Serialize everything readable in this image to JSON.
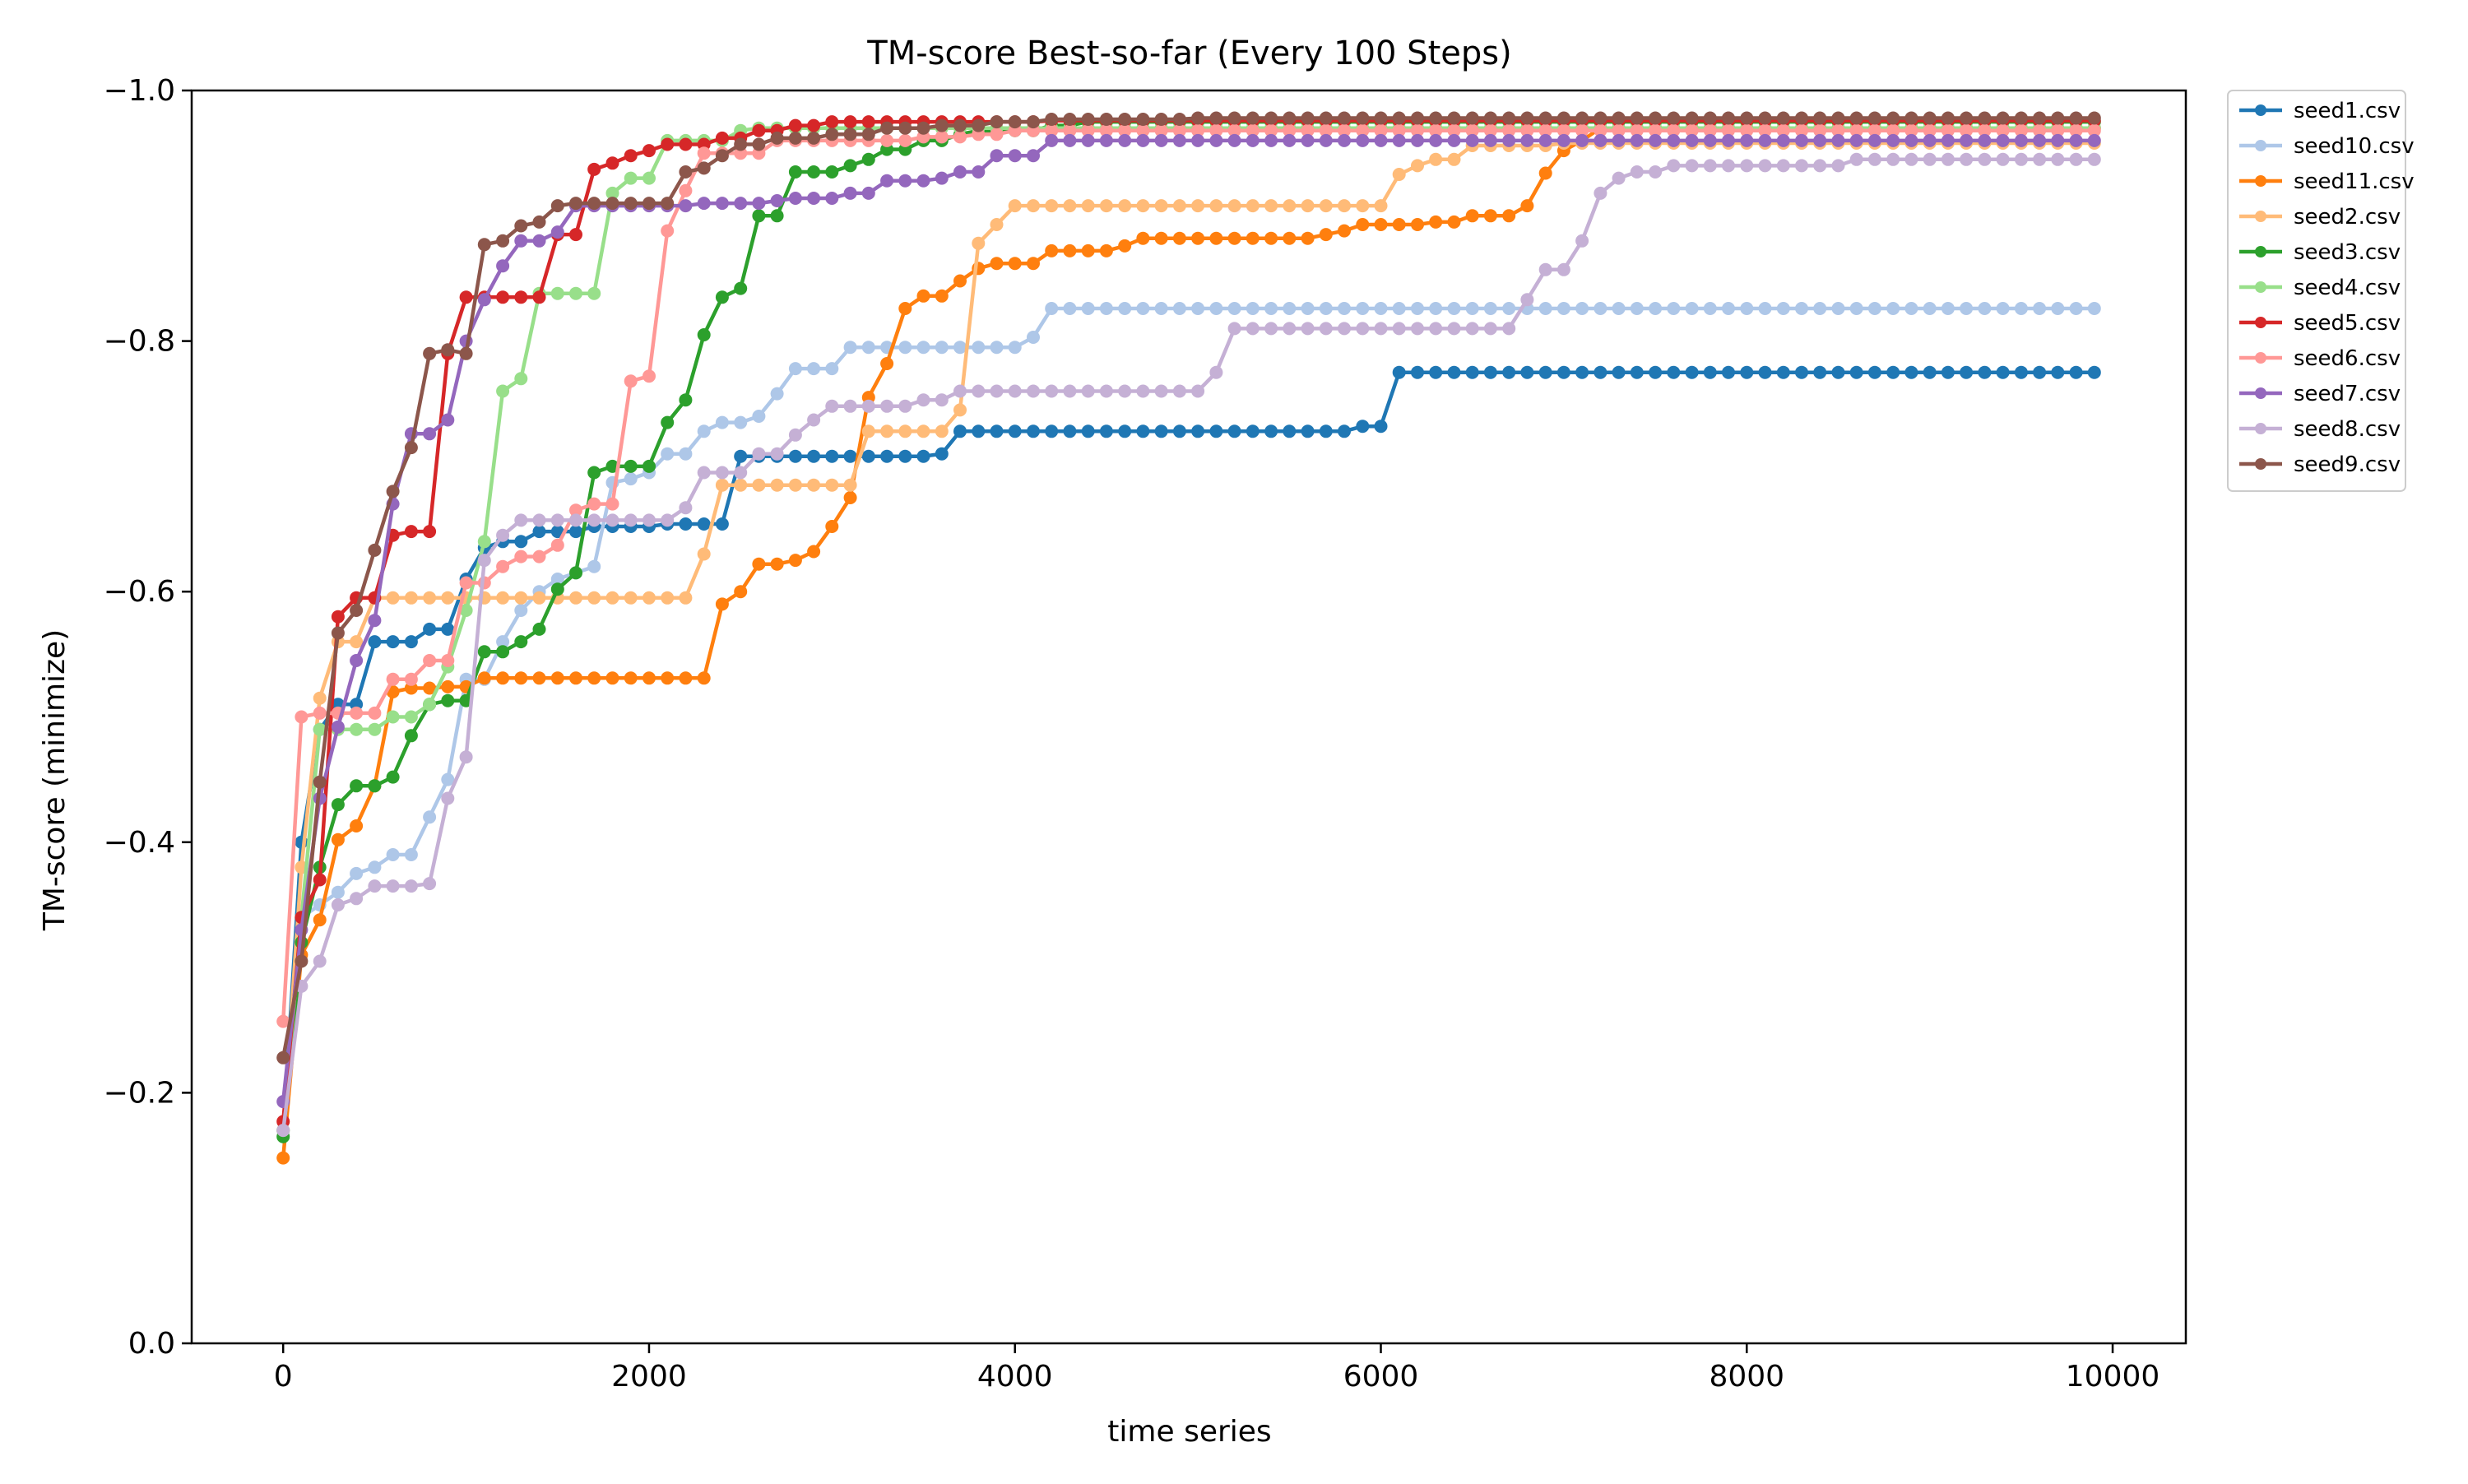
{
  "chart_data": {
    "type": "line",
    "title": "TM-score Best-so-far (Every 100 Steps)",
    "xlabel": "time series",
    "ylabel": "TM-score (minimize)",
    "xlim": [
      -500,
      10400
    ],
    "ylim": [
      0.0,
      -1.0
    ],
    "y_axis_inverted": true,
    "xticks": [
      0,
      2000,
      4000,
      6000,
      8000,
      10000
    ],
    "xtick_labels": [
      "0",
      "2000",
      "4000",
      "6000",
      "8000",
      "10000"
    ],
    "yticks": [
      0.0,
      -0.2,
      -0.4,
      -0.6,
      -0.8,
      -1.0
    ],
    "ytick_labels": [
      "0.0",
      "−0.2",
      "−0.4",
      "−0.6",
      "−0.8",
      "−1.0"
    ],
    "grid": false,
    "legend_position": "outside-top-right",
    "x_step": 100,
    "x_start": 0,
    "series": [
      {
        "name": "seed1.csv",
        "color": "#1f77b4",
        "breakpoints": [
          [
            0,
            -0.17
          ],
          [
            100,
            -0.4
          ],
          [
            200,
            -0.49
          ],
          [
            300,
            -0.51
          ],
          [
            500,
            -0.56
          ],
          [
            800,
            -0.57
          ],
          [
            1000,
            -0.61
          ],
          [
            1100,
            -0.635
          ],
          [
            1200,
            -0.64
          ],
          [
            1400,
            -0.648
          ],
          [
            1700,
            -0.652
          ],
          [
            2100,
            -0.654
          ],
          [
            2500,
            -0.708
          ],
          [
            3600,
            -0.71
          ],
          [
            3700,
            -0.728
          ],
          [
            5900,
            -0.732
          ],
          [
            6100,
            -0.775
          ]
        ]
      },
      {
        "name": "seed10.csv",
        "color": "#aec7e8",
        "breakpoints": [
          [
            0,
            -0.17
          ],
          [
            100,
            -0.34
          ],
          [
            200,
            -0.35
          ],
          [
            300,
            -0.36
          ],
          [
            400,
            -0.375
          ],
          [
            500,
            -0.38
          ],
          [
            600,
            -0.39
          ],
          [
            800,
            -0.42
          ],
          [
            900,
            -0.45
          ],
          [
            1000,
            -0.53
          ],
          [
            1200,
            -0.56
          ],
          [
            1300,
            -0.585
          ],
          [
            1400,
            -0.6
          ],
          [
            1500,
            -0.61
          ],
          [
            1600,
            -0.615
          ],
          [
            1700,
            -0.62
          ],
          [
            1800,
            -0.687
          ],
          [
            1900,
            -0.69
          ],
          [
            2000,
            -0.695
          ],
          [
            2100,
            -0.71
          ],
          [
            2300,
            -0.728
          ],
          [
            2400,
            -0.735
          ],
          [
            2600,
            -0.74
          ],
          [
            2700,
            -0.758
          ],
          [
            2800,
            -0.778
          ],
          [
            3100,
            -0.795
          ],
          [
            4100,
            -0.803
          ],
          [
            4200,
            -0.826
          ]
        ]
      },
      {
        "name": "seed11.csv",
        "color": "#ff7f0e",
        "breakpoints": [
          [
            0,
            -0.148
          ],
          [
            100,
            -0.31
          ],
          [
            200,
            -0.338
          ],
          [
            300,
            -0.402
          ],
          [
            400,
            -0.413
          ],
          [
            500,
            -0.445
          ],
          [
            600,
            -0.52
          ],
          [
            700,
            -0.523
          ],
          [
            900,
            -0.524
          ],
          [
            1100,
            -0.531
          ],
          [
            2400,
            -0.59
          ],
          [
            2500,
            -0.6
          ],
          [
            2600,
            -0.622
          ],
          [
            2800,
            -0.625
          ],
          [
            2900,
            -0.632
          ],
          [
            3000,
            -0.652
          ],
          [
            3100,
            -0.675
          ],
          [
            3200,
            -0.755
          ],
          [
            3300,
            -0.782
          ],
          [
            3400,
            -0.826
          ],
          [
            3500,
            -0.836
          ],
          [
            3700,
            -0.848
          ],
          [
            3800,
            -0.858
          ],
          [
            3900,
            -0.862
          ],
          [
            4200,
            -0.872
          ],
          [
            4600,
            -0.876
          ],
          [
            4700,
            -0.882
          ],
          [
            5700,
            -0.885
          ],
          [
            5800,
            -0.888
          ],
          [
            5900,
            -0.893
          ],
          [
            6300,
            -0.895
          ],
          [
            6500,
            -0.9
          ],
          [
            6800,
            -0.908
          ],
          [
            6900,
            -0.934
          ],
          [
            7000,
            -0.952
          ],
          [
            7100,
            -0.96
          ],
          [
            7200,
            -0.97
          ]
        ]
      },
      {
        "name": "seed2.csv",
        "color": "#ffbb78",
        "breakpoints": [
          [
            0,
            -0.17
          ],
          [
            100,
            -0.38
          ],
          [
            200,
            -0.515
          ],
          [
            300,
            -0.56
          ],
          [
            500,
            -0.595
          ],
          [
            2300,
            -0.63
          ],
          [
            2400,
            -0.685
          ],
          [
            3200,
            -0.728
          ],
          [
            3700,
            -0.745
          ],
          [
            3800,
            -0.878
          ],
          [
            3900,
            -0.893
          ],
          [
            4000,
            -0.908
          ],
          [
            6100,
            -0.933
          ],
          [
            6200,
            -0.94
          ],
          [
            6300,
            -0.945
          ],
          [
            6500,
            -0.956
          ],
          [
            7000,
            -0.958
          ]
        ]
      },
      {
        "name": "seed3.csv",
        "color": "#2ca02c",
        "breakpoints": [
          [
            0,
            -0.165
          ],
          [
            100,
            -0.32
          ],
          [
            200,
            -0.38
          ],
          [
            300,
            -0.43
          ],
          [
            400,
            -0.445
          ],
          [
            600,
            -0.452
          ],
          [
            700,
            -0.485
          ],
          [
            800,
            -0.51
          ],
          [
            900,
            -0.513
          ],
          [
            1100,
            -0.552
          ],
          [
            1300,
            -0.56
          ],
          [
            1400,
            -0.57
          ],
          [
            1500,
            -0.602
          ],
          [
            1600,
            -0.615
          ],
          [
            1700,
            -0.695
          ],
          [
            1800,
            -0.7
          ],
          [
            2100,
            -0.735
          ],
          [
            2200,
            -0.753
          ],
          [
            2300,
            -0.805
          ],
          [
            2400,
            -0.835
          ],
          [
            2500,
            -0.842
          ],
          [
            2600,
            -0.9
          ],
          [
            2800,
            -0.935
          ],
          [
            3100,
            -0.94
          ],
          [
            3200,
            -0.945
          ],
          [
            3300,
            -0.953
          ],
          [
            3500,
            -0.96
          ],
          [
            3700,
            -0.965
          ],
          [
            3800,
            -0.968
          ],
          [
            4200,
            -0.972
          ],
          [
            4400,
            -0.975
          ]
        ]
      },
      {
        "name": "seed4.csv",
        "color": "#98df8a",
        "breakpoints": [
          [
            0,
            -0.17
          ],
          [
            100,
            -0.34
          ],
          [
            200,
            -0.49
          ],
          [
            300,
            -0.49
          ],
          [
            600,
            -0.5
          ],
          [
            800,
            -0.51
          ],
          [
            900,
            -0.54
          ],
          [
            1000,
            -0.585
          ],
          [
            1100,
            -0.64
          ],
          [
            1200,
            -0.76
          ],
          [
            1300,
            -0.77
          ],
          [
            1400,
            -0.838
          ],
          [
            1800,
            -0.918
          ],
          [
            1900,
            -0.93
          ],
          [
            2100,
            -0.96
          ],
          [
            2500,
            -0.968
          ],
          [
            2600,
            -0.97
          ]
        ]
      },
      {
        "name": "seed5.csv",
        "color": "#d62728",
        "breakpoints": [
          [
            0,
            -0.177
          ],
          [
            100,
            -0.34
          ],
          [
            200,
            -0.37
          ],
          [
            300,
            -0.58
          ],
          [
            400,
            -0.595
          ],
          [
            600,
            -0.645
          ],
          [
            700,
            -0.648
          ],
          [
            900,
            -0.79
          ],
          [
            1000,
            -0.835
          ],
          [
            1500,
            -0.885
          ],
          [
            1700,
            -0.937
          ],
          [
            1800,
            -0.942
          ],
          [
            1900,
            -0.948
          ],
          [
            2000,
            -0.952
          ],
          [
            2100,
            -0.957
          ],
          [
            2400,
            -0.962
          ],
          [
            2600,
            -0.968
          ],
          [
            2800,
            -0.972
          ],
          [
            3000,
            -0.975
          ],
          [
            4200,
            -0.976
          ]
        ]
      },
      {
        "name": "seed6.csv",
        "color": "#ff9896",
        "breakpoints": [
          [
            0,
            -0.257
          ],
          [
            100,
            -0.5
          ],
          [
            200,
            -0.503
          ],
          [
            600,
            -0.53
          ],
          [
            700,
            -0.53
          ],
          [
            800,
            -0.545
          ],
          [
            1000,
            -0.607
          ],
          [
            1200,
            -0.62
          ],
          [
            1300,
            -0.628
          ],
          [
            1500,
            -0.637
          ],
          [
            1600,
            -0.665
          ],
          [
            1700,
            -0.67
          ],
          [
            1900,
            -0.768
          ],
          [
            2000,
            -0.772
          ],
          [
            2100,
            -0.888
          ],
          [
            2200,
            -0.92
          ],
          [
            2300,
            -0.95
          ],
          [
            2700,
            -0.96
          ],
          [
            3500,
            -0.963
          ],
          [
            3800,
            -0.965
          ],
          [
            4000,
            -0.968
          ]
        ]
      },
      {
        "name": "seed7.csv",
        "color": "#9467bd",
        "breakpoints": [
          [
            0,
            -0.193
          ],
          [
            100,
            -0.33
          ],
          [
            200,
            -0.435
          ],
          [
            300,
            -0.492
          ],
          [
            400,
            -0.545
          ],
          [
            500,
            -0.577
          ],
          [
            600,
            -0.67
          ],
          [
            700,
            -0.726
          ],
          [
            900,
            -0.737
          ],
          [
            1000,
            -0.8
          ],
          [
            1100,
            -0.833
          ],
          [
            1200,
            -0.86
          ],
          [
            1300,
            -0.88
          ],
          [
            1500,
            -0.887
          ],
          [
            1600,
            -0.908
          ],
          [
            2300,
            -0.91
          ],
          [
            2700,
            -0.912
          ],
          [
            2800,
            -0.914
          ],
          [
            3100,
            -0.918
          ],
          [
            3300,
            -0.928
          ],
          [
            3600,
            -0.93
          ],
          [
            3700,
            -0.935
          ],
          [
            3900,
            -0.948
          ],
          [
            4200,
            -0.96
          ]
        ]
      },
      {
        "name": "seed8.csv",
        "color": "#c5b0d5",
        "breakpoints": [
          [
            0,
            -0.17
          ],
          [
            100,
            -0.285
          ],
          [
            200,
            -0.305
          ],
          [
            300,
            -0.35
          ],
          [
            400,
            -0.355
          ],
          [
            500,
            -0.365
          ],
          [
            800,
            -0.367
          ],
          [
            900,
            -0.435
          ],
          [
            1000,
            -0.468
          ],
          [
            1100,
            -0.625
          ],
          [
            1200,
            -0.645
          ],
          [
            1300,
            -0.657
          ],
          [
            2200,
            -0.667
          ],
          [
            2300,
            -0.695
          ],
          [
            2600,
            -0.71
          ],
          [
            2800,
            -0.725
          ],
          [
            2900,
            -0.737
          ],
          [
            3000,
            -0.748
          ],
          [
            3500,
            -0.753
          ],
          [
            3700,
            -0.76
          ],
          [
            5100,
            -0.775
          ],
          [
            5200,
            -0.81
          ],
          [
            6800,
            -0.833
          ],
          [
            6900,
            -0.857
          ],
          [
            7100,
            -0.88
          ],
          [
            7200,
            -0.918
          ],
          [
            7300,
            -0.93
          ],
          [
            7400,
            -0.935
          ],
          [
            7600,
            -0.94
          ],
          [
            8600,
            -0.945
          ]
        ]
      },
      {
        "name": "seed9.csv",
        "color": "#8c564b",
        "breakpoints": [
          [
            0,
            -0.228
          ],
          [
            100,
            -0.305
          ],
          [
            200,
            -0.448
          ],
          [
            300,
            -0.567
          ],
          [
            400,
            -0.585
          ],
          [
            500,
            -0.633
          ],
          [
            600,
            -0.68
          ],
          [
            700,
            -0.715
          ],
          [
            800,
            -0.79
          ],
          [
            900,
            -0.793
          ],
          [
            1000,
            -0.79
          ],
          [
            1100,
            -0.877
          ],
          [
            1200,
            -0.88
          ],
          [
            1300,
            -0.892
          ],
          [
            1400,
            -0.895
          ],
          [
            1500,
            -0.908
          ],
          [
            1600,
            -0.91
          ],
          [
            2200,
            -0.935
          ],
          [
            2300,
            -0.938
          ],
          [
            2400,
            -0.948
          ],
          [
            2500,
            -0.957
          ],
          [
            2700,
            -0.962
          ],
          [
            3000,
            -0.965
          ],
          [
            3300,
            -0.97
          ],
          [
            3600,
            -0.972
          ],
          [
            3900,
            -0.975
          ],
          [
            4200,
            -0.977
          ],
          [
            5000,
            -0.978
          ]
        ]
      }
    ]
  }
}
